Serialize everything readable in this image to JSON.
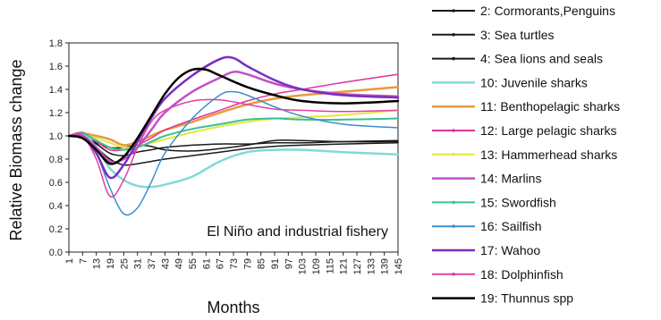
{
  "chart_data": {
    "type": "line",
    "xlabel": "Months",
    "ylabel": "Relative Biomass change",
    "annotation": "El Niño and industrial fishery",
    "ylim": [
      0.0,
      1.8
    ],
    "yticks": [
      "0.0",
      "0.2",
      "0.4",
      "0.6",
      "0.8",
      "1.0",
      "1.2",
      "1.4",
      "1.6",
      "1.8"
    ],
    "xlim": [
      1,
      145
    ],
    "xticks": [
      "1",
      "7",
      "13",
      "19",
      "25",
      "31",
      "37",
      "43",
      "49",
      "55",
      "61",
      "67",
      "73",
      "79",
      "85",
      "91",
      "97",
      "103",
      "109",
      "115",
      "121",
      "127",
      "133",
      "139",
      "145"
    ],
    "grid": false,
    "legend_position": "right",
    "series": [
      {
        "name": "2: Cormorants,Penguins",
        "color": "#1a1a1a",
        "width": 1.5,
        "marker": true,
        "points": [
          [
            1,
            1.0
          ],
          [
            7,
            1.0
          ],
          [
            13,
            0.93
          ],
          [
            19,
            0.85
          ],
          [
            25,
            0.83
          ],
          [
            31,
            0.86
          ],
          [
            37,
            0.88
          ],
          [
            43,
            0.9
          ],
          [
            55,
            0.92
          ],
          [
            67,
            0.93
          ],
          [
            79,
            0.93
          ],
          [
            91,
            0.94
          ],
          [
            103,
            0.94
          ],
          [
            121,
            0.95
          ],
          [
            145,
            0.96
          ]
        ]
      },
      {
        "name": "3: Sea turtles",
        "color": "#1a1a1a",
        "width": 1.5,
        "marker": true,
        "points": [
          [
            1,
            1.0
          ],
          [
            7,
            0.99
          ],
          [
            13,
            0.9
          ],
          [
            19,
            0.8
          ],
          [
            25,
            0.75
          ],
          [
            31,
            0.76
          ],
          [
            37,
            0.78
          ],
          [
            43,
            0.8
          ],
          [
            55,
            0.83
          ],
          [
            67,
            0.86
          ],
          [
            79,
            0.89
          ],
          [
            91,
            0.91
          ],
          [
            103,
            0.92
          ],
          [
            121,
            0.93
          ],
          [
            145,
            0.94
          ]
        ]
      },
      {
        "name": "4: Sea lions and seals",
        "color": "#1a1a1a",
        "width": 1.5,
        "marker": true,
        "points": [
          [
            1,
            1.0
          ],
          [
            7,
            1.0
          ],
          [
            13,
            0.94
          ],
          [
            19,
            0.9
          ],
          [
            25,
            0.9
          ],
          [
            31,
            0.92
          ],
          [
            37,
            0.91
          ],
          [
            43,
            0.88
          ],
          [
            55,
            0.87
          ],
          [
            67,
            0.89
          ],
          [
            79,
            0.92
          ],
          [
            91,
            0.96
          ],
          [
            103,
            0.96
          ],
          [
            121,
            0.95
          ],
          [
            145,
            0.95
          ]
        ]
      },
      {
        "name": "10: Juvenile sharks",
        "color": "#7fdad8",
        "width": 2.5,
        "marker": false,
        "points": [
          [
            1,
            1.0
          ],
          [
            7,
            1.02
          ],
          [
            13,
            0.9
          ],
          [
            19,
            0.72
          ],
          [
            25,
            0.62
          ],
          [
            31,
            0.57
          ],
          [
            37,
            0.56
          ],
          [
            43,
            0.58
          ],
          [
            55,
            0.65
          ],
          [
            67,
            0.78
          ],
          [
            79,
            0.86
          ],
          [
            91,
            0.88
          ],
          [
            103,
            0.88
          ],
          [
            121,
            0.86
          ],
          [
            145,
            0.84
          ]
        ]
      },
      {
        "name": "11: Benthopelagic sharks",
        "color": "#e89a3a",
        "width": 2.5,
        "marker": false,
        "points": [
          [
            1,
            1.0
          ],
          [
            7,
            1.02
          ],
          [
            13,
            1.0
          ],
          [
            19,
            0.97
          ],
          [
            25,
            0.92
          ],
          [
            31,
            0.95
          ],
          [
            37,
            1.0
          ],
          [
            43,
            1.05
          ],
          [
            55,
            1.12
          ],
          [
            67,
            1.2
          ],
          [
            79,
            1.27
          ],
          [
            91,
            1.32
          ],
          [
            103,
            1.35
          ],
          [
            121,
            1.38
          ],
          [
            145,
            1.42
          ]
        ]
      },
      {
        "name": "12: Large pelagic sharks",
        "color": "#dd3399",
        "width": 1.5,
        "marker": true,
        "points": [
          [
            1,
            1.0
          ],
          [
            7,
            1.03
          ],
          [
            13,
            0.95
          ],
          [
            19,
            0.88
          ],
          [
            25,
            0.88
          ],
          [
            31,
            0.92
          ],
          [
            37,
            0.98
          ],
          [
            43,
            1.05
          ],
          [
            55,
            1.14
          ],
          [
            67,
            1.22
          ],
          [
            79,
            1.3
          ],
          [
            91,
            1.36
          ],
          [
            103,
            1.4
          ],
          [
            121,
            1.46
          ],
          [
            145,
            1.53
          ]
        ]
      },
      {
        "name": "13: Hammerhead sharks",
        "color": "#e6e640",
        "width": 2,
        "marker": true,
        "points": [
          [
            1,
            1.0
          ],
          [
            7,
            1.01
          ],
          [
            13,
            0.98
          ],
          [
            19,
            0.94
          ],
          [
            25,
            0.9
          ],
          [
            31,
            0.91
          ],
          [
            37,
            0.94
          ],
          [
            43,
            0.97
          ],
          [
            55,
            1.03
          ],
          [
            67,
            1.08
          ],
          [
            79,
            1.12
          ],
          [
            91,
            1.15
          ],
          [
            103,
            1.16
          ],
          [
            121,
            1.18
          ],
          [
            145,
            1.22
          ]
        ]
      },
      {
        "name": "14: Marlins",
        "color": "#c050c8",
        "width": 2.5,
        "marker": false,
        "points": [
          [
            1,
            1.0
          ],
          [
            7,
            1.0
          ],
          [
            13,
            0.9
          ],
          [
            19,
            0.78
          ],
          [
            25,
            0.8
          ],
          [
            31,
            0.9
          ],
          [
            37,
            1.05
          ],
          [
            43,
            1.2
          ],
          [
            55,
            1.38
          ],
          [
            67,
            1.5
          ],
          [
            73,
            1.55
          ],
          [
            79,
            1.53
          ],
          [
            91,
            1.45
          ],
          [
            103,
            1.4
          ],
          [
            121,
            1.36
          ],
          [
            145,
            1.34
          ]
        ]
      },
      {
        "name": "15: Swordfish",
        "color": "#3cbf90",
        "width": 2,
        "marker": true,
        "points": [
          [
            1,
            1.0
          ],
          [
            7,
            1.02
          ],
          [
            13,
            0.96
          ],
          [
            19,
            0.9
          ],
          [
            25,
            0.88
          ],
          [
            31,
            0.9
          ],
          [
            37,
            0.95
          ],
          [
            43,
            1.0
          ],
          [
            55,
            1.06
          ],
          [
            67,
            1.1
          ],
          [
            79,
            1.14
          ],
          [
            91,
            1.15
          ],
          [
            103,
            1.14
          ],
          [
            121,
            1.14
          ],
          [
            145,
            1.15
          ]
        ]
      },
      {
        "name": "16: Sailfish",
        "color": "#3a8fd0",
        "width": 1.5,
        "marker": true,
        "points": [
          [
            1,
            1.0
          ],
          [
            7,
            1.0
          ],
          [
            13,
            0.85
          ],
          [
            19,
            0.55
          ],
          [
            25,
            0.33
          ],
          [
            31,
            0.38
          ],
          [
            37,
            0.6
          ],
          [
            43,
            0.85
          ],
          [
            55,
            1.15
          ],
          [
            67,
            1.35
          ],
          [
            73,
            1.38
          ],
          [
            79,
            1.35
          ],
          [
            91,
            1.25
          ],
          [
            103,
            1.17
          ],
          [
            121,
            1.1
          ],
          [
            145,
            1.07
          ]
        ]
      },
      {
        "name": "17: Wahoo",
        "color": "#7a2ec0",
        "width": 2.5,
        "marker": false,
        "points": [
          [
            1,
            1.0
          ],
          [
            7,
            1.0
          ],
          [
            13,
            0.85
          ],
          [
            19,
            0.64
          ],
          [
            25,
            0.75
          ],
          [
            31,
            0.95
          ],
          [
            37,
            1.15
          ],
          [
            43,
            1.32
          ],
          [
            55,
            1.52
          ],
          [
            67,
            1.66
          ],
          [
            73,
            1.67
          ],
          [
            79,
            1.6
          ],
          [
            91,
            1.48
          ],
          [
            103,
            1.4
          ],
          [
            121,
            1.35
          ],
          [
            145,
            1.33
          ]
        ]
      },
      {
        "name": "18: Dolphinfish",
        "color": "#e040a0",
        "width": 1.5,
        "marker": true,
        "points": [
          [
            1,
            1.0
          ],
          [
            7,
            1.0
          ],
          [
            13,
            0.8
          ],
          [
            19,
            0.48
          ],
          [
            25,
            0.62
          ],
          [
            31,
            0.9
          ],
          [
            37,
            1.12
          ],
          [
            43,
            1.22
          ],
          [
            55,
            1.3
          ],
          [
            67,
            1.31
          ],
          [
            79,
            1.27
          ],
          [
            91,
            1.23
          ],
          [
            103,
            1.22
          ],
          [
            121,
            1.21
          ],
          [
            145,
            1.22
          ]
        ]
      },
      {
        "name": "19: Thunnus spp",
        "color": "#000000",
        "width": 2.5,
        "marker": false,
        "points": [
          [
            1,
            1.0
          ],
          [
            7,
            0.98
          ],
          [
            13,
            0.88
          ],
          [
            19,
            0.76
          ],
          [
            25,
            0.82
          ],
          [
            31,
            0.98
          ],
          [
            37,
            1.17
          ],
          [
            43,
            1.36
          ],
          [
            49,
            1.5
          ],
          [
            55,
            1.57
          ],
          [
            61,
            1.57
          ],
          [
            67,
            1.52
          ],
          [
            79,
            1.42
          ],
          [
            91,
            1.35
          ],
          [
            103,
            1.3
          ],
          [
            121,
            1.28
          ],
          [
            145,
            1.3
          ]
        ]
      }
    ]
  }
}
